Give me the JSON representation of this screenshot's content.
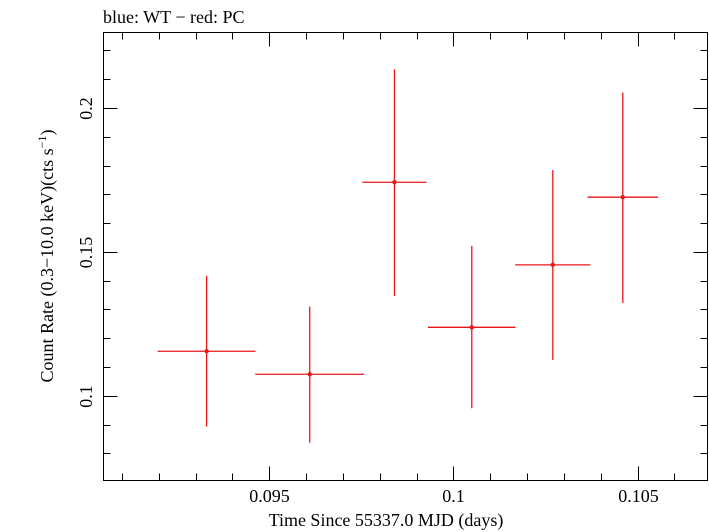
{
  "chart_data": {
    "type": "scatter",
    "title": "blue: WT − red: PC",
    "xlabel": "Time Since 55337.0 MJD (days)",
    "ylabel_main": "Count Rate (0.3−10.0 keV)(cts s",
    "ylabel_sup": "−1",
    "ylabel_close": ")",
    "xlim": [
      0.0905,
      0.1069
    ],
    "ylim": [
      0.0706,
      0.2262
    ],
    "x_ticks_major": [
      0.095,
      0.1,
      0.105
    ],
    "x_tick_labels": [
      "0.095",
      "0.1",
      "0.105"
    ],
    "x_ticks_minor_step": 0.001,
    "y_ticks_major": [
      0.1,
      0.15,
      0.2
    ],
    "y_tick_labels": [
      "0.1",
      "0.15",
      "0.2"
    ],
    "y_ticks_minor_step": 0.01,
    "grid": false,
    "series": [
      {
        "name": "PC",
        "color": "#e8161b",
        "points": [
          {
            "x": 0.0933,
            "xerr": 0.00133,
            "y": 0.1155,
            "yerr_low": 0.0262,
            "yerr_high": 0.0262
          },
          {
            "x": 0.0961,
            "xerr": 0.00148,
            "y": 0.1075,
            "yerr_low": 0.0238,
            "yerr_high": 0.0235
          },
          {
            "x": 0.0984,
            "xerr": 0.00087,
            "y": 0.1742,
            "yerr_low": 0.0395,
            "yerr_high": 0.0392
          },
          {
            "x": 0.1005,
            "xerr": 0.00119,
            "y": 0.1238,
            "yerr_low": 0.0281,
            "yerr_high": 0.0283
          },
          {
            "x": 0.1027,
            "xerr": 0.00102,
            "y": 0.1455,
            "yerr_low": 0.033,
            "yerr_high": 0.0329
          },
          {
            "x": 0.1046,
            "xerr": 0.00096,
            "y": 0.169,
            "yerr_low": 0.0367,
            "yerr_high": 0.0363
          }
        ]
      }
    ]
  }
}
